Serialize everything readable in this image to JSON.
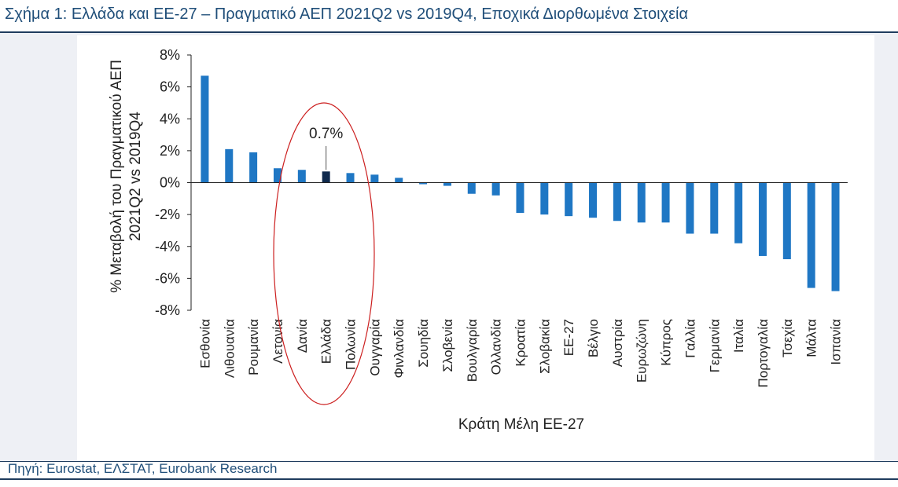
{
  "header": {
    "title": "Σχήμα 1: Ελλάδα και ΕΕ-27 – Πραγματικό ΑΕΠ 2021Q2 vs 2019Q4, Εποχικά Διορθωμένα Στοιχεία"
  },
  "footer": {
    "source": "Πηγή: Eurostat, ΕΛΣΤΑΤ, Eurobank Research"
  },
  "chart_data": {
    "type": "bar",
    "title": "",
    "xlabel": "Κράτη Μέλη ΕΕ-27",
    "ylabel_lines": [
      "% Μεταβολή του Πραγματικού ΑΕΠ",
      "2021Q2 vs 2019Q4"
    ],
    "ylim": [
      -8,
      8
    ],
    "yticks": [
      8,
      6,
      4,
      2,
      0,
      -2,
      -4,
      -6,
      -8
    ],
    "ytick_labels": [
      "8%",
      "6%",
      "4%",
      "2%",
      "0%",
      "-2%",
      "-4%",
      "-6%",
      "-8%"
    ],
    "grid": false,
    "legend": "none",
    "colors": {
      "bar": "#1f77c4",
      "highlight": "#0f2a4d",
      "ellipse": "#cc1f1f"
    },
    "highlight_category": "Ελλάδα",
    "annotation": {
      "text": "0.7%",
      "category": "Ελλάδα"
    },
    "categories": [
      "Εσθονία",
      "Λιθουανία",
      "Ρουμανία",
      "Λετονία",
      "Δανία",
      "Ελλάδα",
      "Πολωνία",
      "Ουγγαρία",
      "Φινλανδία",
      "Σουηδία",
      "Σλοβενία",
      "Βουλγαρία",
      "Ολλανδία",
      "Κροατία",
      "Σλοβακία",
      "ΕΕ-27",
      "Βέλγιο",
      "Αυστρία",
      "Ευρωζώνη",
      "Κύπρος",
      "Γαλλία",
      "Γερμανία",
      "Ιταλία",
      "Πορτογαλία",
      "Τσεχία",
      "Μάλτα",
      "Ισπανία"
    ],
    "values": [
      6.7,
      2.1,
      1.9,
      0.9,
      0.8,
      0.7,
      0.6,
      0.5,
      0.3,
      -0.1,
      -0.2,
      -0.7,
      -0.8,
      -1.9,
      -2.0,
      -2.1,
      -2.2,
      -2.4,
      -2.5,
      -2.5,
      -3.2,
      -3.2,
      -3.8,
      -4.6,
      -4.8,
      -6.6,
      -6.8
    ]
  }
}
